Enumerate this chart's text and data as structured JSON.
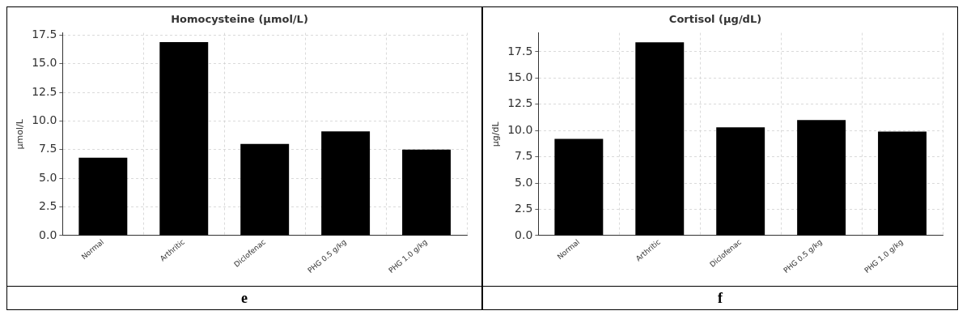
{
  "chart_data": [
    {
      "type": "bar",
      "title": "Homocysteine (µmol/L)",
      "ylabel": "µmol/L",
      "categories": [
        "Normal",
        "Arthritic",
        "Diclofenac",
        "PHG 0.5 g/kg",
        "PHG 1.0 g/kg"
      ],
      "values": [
        6.8,
        16.9,
        8.0,
        9.1,
        7.5
      ],
      "color": "#000000",
      "ylim": [
        0,
        17.7
      ],
      "yticks": [
        {
          "value": 0,
          "label": "0.0"
        },
        {
          "value": 2.5,
          "label": "2.5"
        },
        {
          "value": 5,
          "label": "5.0"
        },
        {
          "value": 7.5,
          "label": "7.5"
        },
        {
          "value": 10,
          "label": "10.0"
        },
        {
          "value": 12.5,
          "label": "12.5"
        },
        {
          "value": 15,
          "label": "15.0"
        },
        {
          "value": 17.5,
          "label": "17.5"
        }
      ],
      "grid": true,
      "annotations": [
        "e"
      ]
    },
    {
      "type": "bar",
      "title": "Cortisol (µg/dL)",
      "ylabel": "µg/dL",
      "categories": [
        "Normal",
        "Arthritic",
        "Diclofenac",
        "PHG 0.5 g/kg",
        "PHG 1.0 g/kg"
      ],
      "values": [
        9.2,
        18.4,
        10.3,
        11.0,
        9.9
      ],
      "color": "#000000",
      "ylim": [
        0,
        19.3
      ],
      "yticks": [
        {
          "value": 0,
          "label": "0.0"
        },
        {
          "value": 2.5,
          "label": "2.5"
        },
        {
          "value": 5,
          "label": "5.0"
        },
        {
          "value": 7.5,
          "label": "7.5"
        },
        {
          "value": 10,
          "label": "10.0"
        },
        {
          "value": 12.5,
          "label": "12.5"
        },
        {
          "value": 15,
          "label": "15.0"
        },
        {
          "value": 17.5,
          "label": "17.5"
        }
      ],
      "grid": true,
      "annotations": [
        "f"
      ]
    }
  ]
}
